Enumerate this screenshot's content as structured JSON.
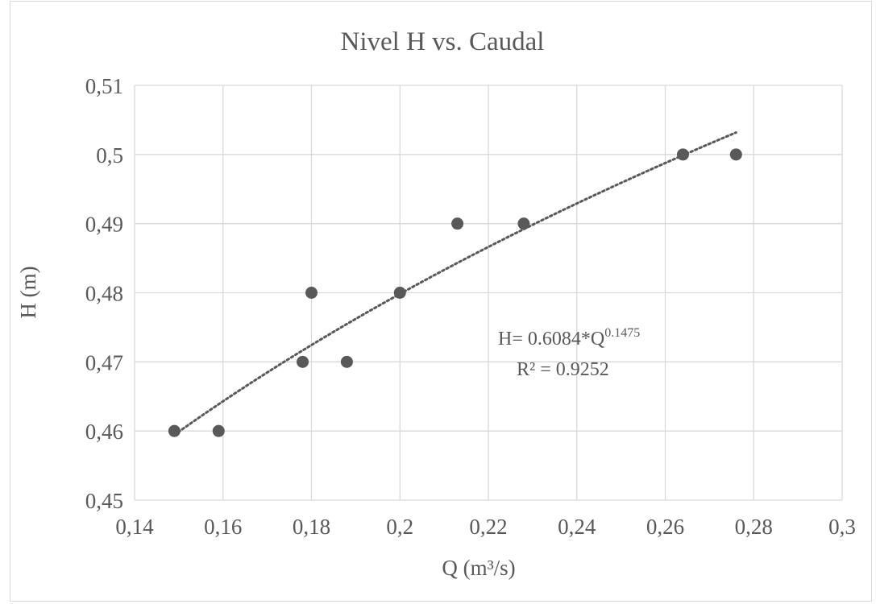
{
  "chart_data": {
    "type": "scatter",
    "title": "Nivel H vs. Caudal",
    "xlabel": "Q (m³/s)",
    "ylabel": "H (m)",
    "xlim": [
      0.14,
      0.3
    ],
    "ylim": [
      0.45,
      0.51
    ],
    "x_ticks": [
      0.14,
      0.16,
      0.18,
      0.2,
      0.22,
      0.24,
      0.26,
      0.28,
      0.3
    ],
    "x_tick_labels": [
      "0,14",
      "0,16",
      "0,18",
      "0,2",
      "0,22",
      "0,24",
      "0,26",
      "0,28",
      "0,3"
    ],
    "y_ticks": [
      0.45,
      0.46,
      0.47,
      0.48,
      0.49,
      0.5,
      0.51
    ],
    "y_tick_labels": [
      "0,45",
      "0,46",
      "0,47",
      "0,48",
      "0,49",
      "0,5",
      "0,51"
    ],
    "grid": true,
    "points": [
      {
        "x": 0.149,
        "y": 0.46
      },
      {
        "x": 0.159,
        "y": 0.46
      },
      {
        "x": 0.178,
        "y": 0.47
      },
      {
        "x": 0.18,
        "y": 0.48
      },
      {
        "x": 0.188,
        "y": 0.47
      },
      {
        "x": 0.2,
        "y": 0.48
      },
      {
        "x": 0.213,
        "y": 0.49
      },
      {
        "x": 0.228,
        "y": 0.49
      },
      {
        "x": 0.264,
        "y": 0.5
      },
      {
        "x": 0.276,
        "y": 0.5
      }
    ],
    "trendline": {
      "type": "power",
      "coefficient": 0.6084,
      "exponent": 0.1475,
      "x_range": [
        0.149,
        0.276
      ],
      "style": "dotted"
    },
    "annotation": {
      "equation_prefix": "H= 0.6084*Q",
      "equation_exponent": "0.1475",
      "r_squared": "R² = 0.9252"
    },
    "colors": {
      "marker": "#595959",
      "trendline": "#595959",
      "grid": "#d9d9d9",
      "text": "#595959"
    }
  }
}
